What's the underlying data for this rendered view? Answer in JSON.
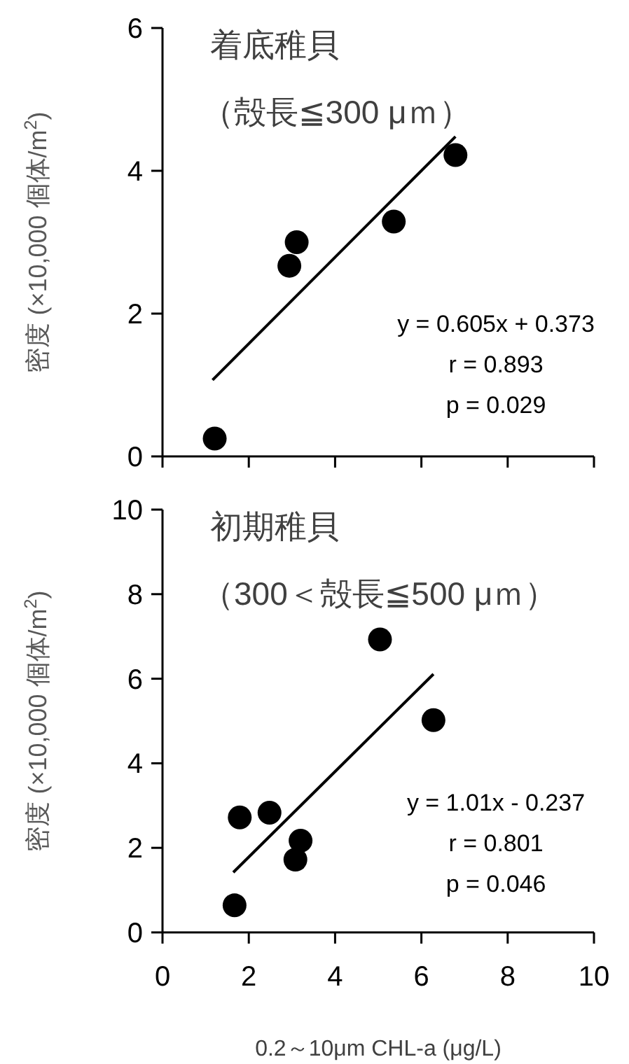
{
  "chart_data": [
    {
      "type": "scatter",
      "title": "着底稚貝",
      "subtitle": "（殻長≦300 μｍ）",
      "ylabel": "密度 (×10,000 個体/m$^{2}$)",
      "xlim": [
        0,
        10
      ],
      "xticks": [
        0,
        2,
        4,
        6,
        8,
        10
      ],
      "ylim": [
        0,
        6
      ],
      "yticks": [
        0,
        2,
        4,
        6
      ],
      "tick_labels": "y",
      "annotations": [
        "y = 0.605x + 0.373",
        "r = 0.893",
        "p = 0.029"
      ],
      "series": [
        {
          "marker": "circle",
          "color": "#000000",
          "x": [
            1.21,
            2.94,
            3.11,
            5.36,
            6.79
          ],
          "values": [
            0.25,
            2.67,
            3.0,
            3.29,
            4.22
          ]
        },
        {
          "type": "line",
          "color": "#000000",
          "x": [
            1.16,
            6.79
          ],
          "values": [
            1.07,
            4.48
          ]
        }
      ]
    },
    {
      "type": "scatter",
      "title": "初期稚貝",
      "subtitle": "（300＜殻長≦500 μｍ）",
      "ylabel": "密度 (×10,000 個体/m$^{2}$)",
      "xlabel": "0.2～10μm CHL-a (μg/L)",
      "xlim": [
        0,
        10
      ],
      "xticks": [
        0,
        2,
        4,
        6,
        8,
        10
      ],
      "ylim": [
        0,
        10
      ],
      "yticks": [
        0,
        2,
        4,
        6,
        8,
        10
      ],
      "annotations": [
        "y = 1.01x - 0.237",
        "r = 0.801",
        "p = 0.046"
      ],
      "series": [
        {
          "marker": "circle",
          "color": "#000000",
          "x": [
            1.67,
            1.79,
            2.48,
            3.2,
            3.08,
            5.04,
            6.28
          ],
          "values": [
            0.64,
            2.72,
            2.83,
            2.17,
            1.72,
            6.93,
            5.02
          ]
        },
        {
          "type": "line",
          "color": "#000000",
          "x": [
            1.64,
            6.28
          ],
          "values": [
            1.42,
            6.11
          ]
        }
      ]
    }
  ]
}
